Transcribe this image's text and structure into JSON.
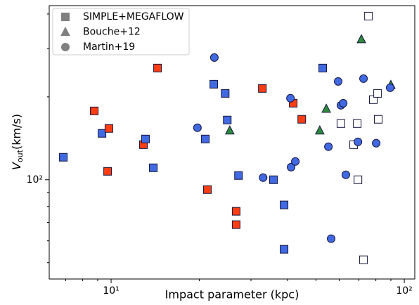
{
  "chart_data": {
    "type": "scatter",
    "x_label": "Impact parameter (kpc)",
    "y_label": {
      "symbol": "V",
      "subscript": "out",
      "unit": "(km/s)"
    },
    "xscale": "log",
    "yscale": "log",
    "xlim": [
      6.15,
      108.6
    ],
    "ylim": [
      43.6,
      429
    ],
    "xticks": [
      {
        "value": 10,
        "label": "10¹"
      },
      {
        "value": 100,
        "label": "10²"
      }
    ],
    "xminor": [
      7,
      8,
      9,
      20,
      30,
      40,
      50,
      60,
      70,
      80,
      90
    ],
    "yticks": [
      {
        "value": 100,
        "label": "10²"
      }
    ],
    "yminor": [
      50,
      60,
      70,
      80,
      90,
      200,
      300,
      400
    ],
    "legend": "upper left",
    "legend_color": "#808080",
    "edge_color": "#14143c",
    "series": [
      {
        "name": "SIMPLE+MEGAFLOW",
        "marker": "square",
        "x": [
          6.87,
          8.76,
          9.31,
          9.83,
          9.73,
          12.89,
          13.1,
          13.93,
          14.4,
          20.96,
          21.3,
          22.4,
          24.5,
          24.9,
          26.7,
          26.7,
          27.2,
          32.8,
          35.8,
          38.9,
          38.9,
          41.8,
          44.7,
          52.7,
          60.8,
          67.2,
          69.1,
          69.5,
          72.6,
          75.5,
          78.4,
          81.1,
          81.5
        ],
        "values": [
          120.7,
          177.8,
          147.4,
          153.6,
          107.3,
          134.1,
          140.6,
          110.5,
          254.5,
          140.6,
          92.1,
          222.3,
          205.9,
          164.8,
          76.8,
          68.7,
          103.6,
          214.6,
          100,
          81.0,
          55.9,
          189.7,
          165.8,
          254.5,
          160.0,
          134.1,
          160.0,
          100,
          51.2,
          393,
          195.4,
          205.9,
          165.8
        ],
        "colors": [
          "#4169e1",
          "#ff3d14",
          "#4169e1",
          "#ff3d14",
          "#ff3d14",
          "#ff3d14",
          "#4169e1",
          "#4169e1",
          "#ff3d14",
          "#4169e1",
          "#ff3d14",
          "#4169e1",
          "#4169e1",
          "#4169e1",
          "#ff3d14",
          "#ff3d14",
          "#4169e1",
          "#ff3d14",
          "#4169e1",
          "#4169e1",
          "#4169e1",
          "#ff3d14",
          "#ff3d14",
          "#4169e1",
          "#ffffff",
          "#ffffff",
          "#ffffff",
          "#ffffff",
          "#ffffff",
          "#ffffff",
          "#ffffff",
          "#ffffff",
          "#ffffff"
        ]
      },
      {
        "name": "Bouche+12",
        "marker": "triangle",
        "color": "#2e8b3e",
        "x": [
          25.4,
          51.5,
          54.2,
          71.4,
          90.0
        ],
        "values": [
          150.9,
          150.9,
          181.0,
          323.7,
          221.0
        ]
      },
      {
        "name": "Martin+19",
        "marker": "circle",
        "color": "#4169e1",
        "x": [
          22.5,
          19.7,
          33.0,
          41.1,
          40.9,
          42.5,
          55.1,
          56.3,
          59.5,
          60.8,
          61.9,
          63.2,
          69.5,
          72.6,
          80.2,
          89.5
        ],
        "values": [
          277.9,
          154.5,
          101.8,
          111.1,
          197.7,
          116.5,
          131.8,
          61.1,
          227.6,
          186.4,
          189.7,
          104.2,
          137.3,
          232.9,
          135.8,
          215.9
        ]
      }
    ]
  }
}
